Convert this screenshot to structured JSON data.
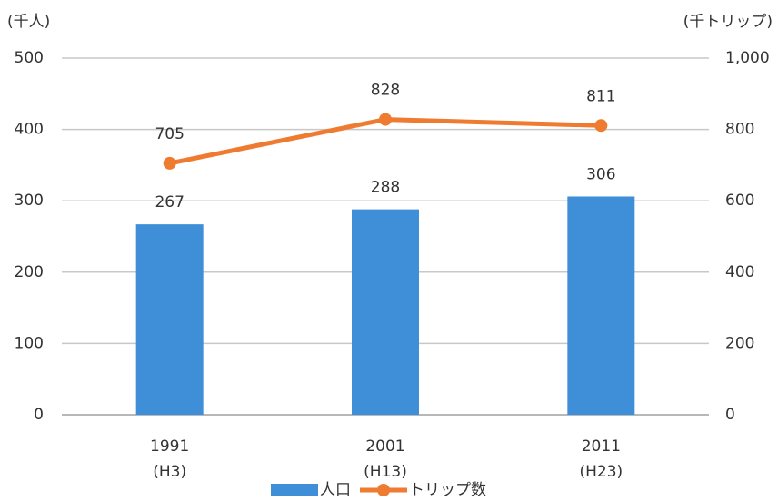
{
  "chart_data": {
    "type": "bar-line",
    "y_label": "(千人)",
    "y2_label": "(千トリップ)",
    "categories": [
      [
        "1991",
        "(H3)"
      ],
      [
        "2001",
        "(H13)"
      ],
      [
        "2011",
        "(H23)"
      ]
    ],
    "series": [
      {
        "name": "人口",
        "type": "bar",
        "color": "#3f8ed8",
        "values": [
          267,
          288,
          306
        ]
      },
      {
        "name": "トリップ数",
        "type": "line",
        "color": "#ee7b30",
        "axis": "y2",
        "values": [
          705,
          828,
          811
        ]
      }
    ],
    "ylim": [
      0,
      500
    ],
    "yticks": [
      0,
      100,
      200,
      300,
      400,
      500
    ],
    "y2lim": [
      0,
      1000
    ],
    "y2ticks": [
      0,
      200,
      400,
      600,
      800,
      {
        "value": 1000,
        "label": "1,000"
      }
    ],
    "grid": true,
    "legend": "bottom"
  }
}
